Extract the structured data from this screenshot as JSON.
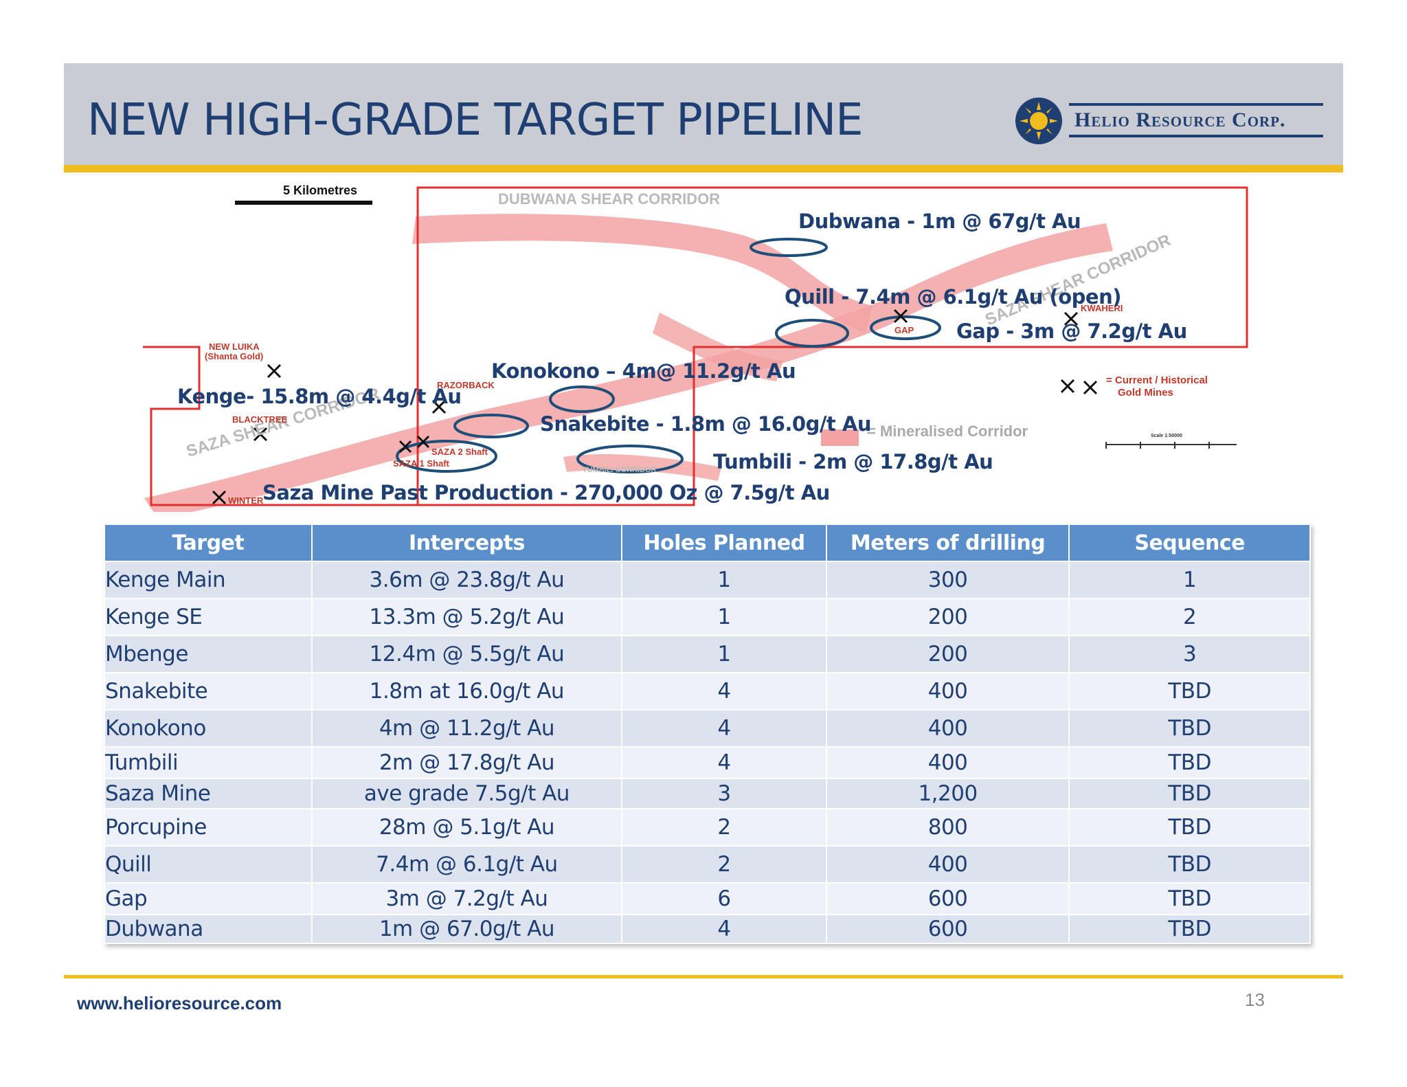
{
  "title": "NEW HIGH-GRADE TARGET PIPELINE",
  "logo": {
    "text": "Helio Resource Corp.",
    "icon": "sun-emblem-icon"
  },
  "map": {
    "scale_label": "5 Kilometres",
    "corridors": {
      "dubwana": "DUBWANA SHEAR CORRIDOR",
      "saza_west": "SAZA SHEAR CORRIDOR",
      "saza_east": "SAZA SHEAR CORRIDOR",
      "tumbili": "TUMBILI CORRIDOR"
    },
    "place_names": {
      "new_luika": "NEW LUIKA",
      "shanta": "(Shanta Gold)",
      "razorback": "RAZORBACK",
      "blacktree": "BLACKTREE",
      "saza2": "SAZA 2 Shaft",
      "saza1": "SAZA 1 Shaft",
      "winter": "WINTER",
      "gap": "GAP",
      "kwaheri": "KWAHERI"
    },
    "legend": {
      "mines": "= Current / Historical",
      "mines2": "Gold Mines",
      "corridor": "= Mineralised Corridor",
      "scale": "Scale 1:50000"
    },
    "labels": {
      "dubwana": "Dubwana - 1m @ 67g/t Au",
      "quill": "Quill - 7.4m @ 6.1g/t Au (open)",
      "gap": "Gap - 3m @ 7.2g/t Au",
      "konokono": "Konokono – 4m@ 11.2g/t Au",
      "kenge": "Kenge- 15.8m @ 4.4g/t Au",
      "snakebite": "Snakebite - 1.8m @ 16.0g/t Au",
      "tumbili": "Tumbili - 2m @ 17.8g/t Au",
      "saza": "Saza Mine Past Production - 270,000 Oz @ 7.5g/t Au"
    },
    "colors": {
      "corridor": "#f3a3a3",
      "box": "#e03030",
      "circle": "#1f4e79"
    }
  },
  "table": {
    "headers": [
      "Target",
      "Intercepts",
      "Holes Planned",
      "Meters of drilling",
      "Sequence"
    ],
    "rows": [
      [
        "Kenge Main",
        "3.6m @ 23.8g/t Au",
        "1",
        "300",
        "1"
      ],
      [
        "Kenge SE",
        "13.3m @ 5.2g/t Au",
        "1",
        "200",
        "2"
      ],
      [
        "Mbenge",
        "12.4m @ 5.5g/t Au",
        "1",
        "200",
        "3"
      ],
      [
        "Snakebite",
        "1.8m at 16.0g/t Au",
        "4",
        "400",
        "TBD"
      ],
      [
        "Konokono",
        "4m @ 11.2g/t Au",
        "4",
        "400",
        "TBD"
      ],
      [
        "Tumbili",
        "2m @ 17.8g/t Au",
        "4",
        "400",
        "TBD"
      ],
      [
        "Saza Mine",
        "ave grade 7.5g/t Au",
        "3",
        "1,200",
        "TBD"
      ],
      [
        "Porcupine",
        "28m @ 5.1g/t Au",
        "2",
        "800",
        "TBD"
      ],
      [
        "Quill",
        "7.4m @ 6.1g/t Au",
        "2",
        "400",
        "TBD"
      ],
      [
        "Gap",
        "3m @ 7.2g/t Au",
        "6",
        "600",
        "TBD"
      ],
      [
        "Dubwana",
        "1m @ 67.0g/t Au",
        "4",
        "600",
        "TBD"
      ]
    ]
  },
  "footer": {
    "url": "www.helioresource.com",
    "page": "13"
  },
  "colors": {
    "title": "#1f3e72",
    "accent": "#f0bd1f",
    "header_bg": "#c9cdd3",
    "table_header": "#5b8fcb"
  }
}
